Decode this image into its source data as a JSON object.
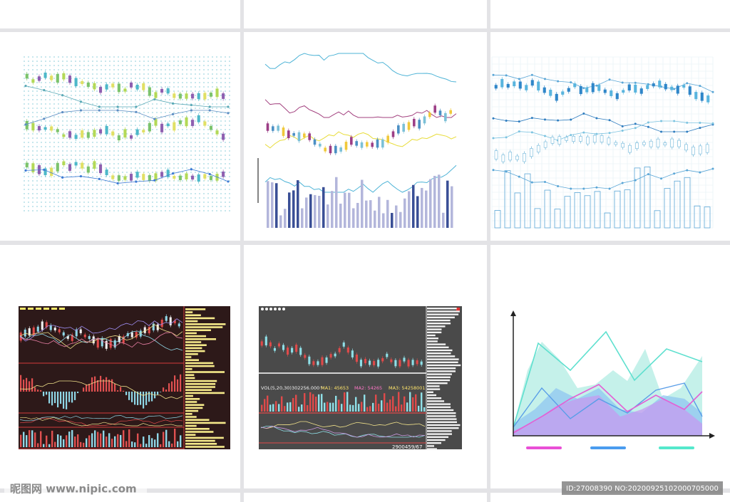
{
  "watermark": {
    "site": "昵图网 www.nipic.com",
    "id": "ID:27008390 NO:20200925102000705000"
  },
  "panel5": {
    "vol": "VOL(5,20,30)302256.000↑",
    "ma1": "MA1: 45653",
    "ma2": "MA2: 54265",
    "ma3": "MA3: 54258001",
    "footer": "2900459/67"
  }
}
